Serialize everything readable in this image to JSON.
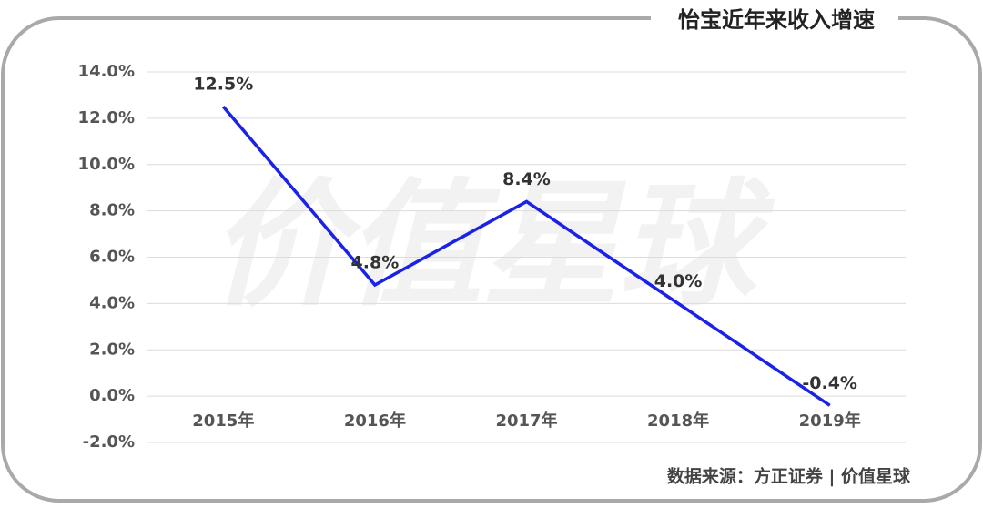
{
  "chart_data": {
    "type": "line",
    "title": "怡宝近年来收入增速",
    "categories": [
      "2015年",
      "2016年",
      "2017年",
      "2018年",
      "2019年"
    ],
    "series": [
      {
        "name": "收入增速",
        "color": "#1a22e8",
        "values": [
          12.5,
          4.8,
          8.4,
          4.0,
          -0.4
        ],
        "value_labels": [
          "12.5%",
          "4.8%",
          "8.4%",
          "4.0%",
          "-0.4%"
        ]
      }
    ],
    "ylim": [
      -2,
      14
    ],
    "yticks": [
      {
        "value": -2,
        "label": "-2.0%"
      },
      {
        "value": 0,
        "label": "0.0%"
      },
      {
        "value": 2,
        "label": "2.0%"
      },
      {
        "value": 4,
        "label": "4.0%"
      },
      {
        "value": 6,
        "label": "6.0%"
      },
      {
        "value": 8,
        "label": "8.0%"
      },
      {
        "value": 10,
        "label": "10.0%"
      },
      {
        "value": 12,
        "label": "12.0%"
      },
      {
        "value": 14,
        "label": "14.0%"
      }
    ],
    "grid": true,
    "watermark": "价值星球",
    "source": "数据来源：方正证券 | 价值星球"
  }
}
